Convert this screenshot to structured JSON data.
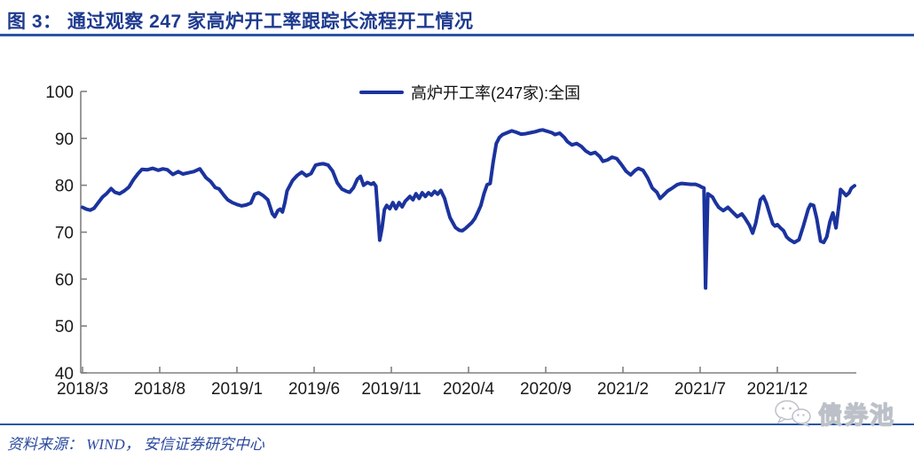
{
  "title": {
    "text": "图 3：  通过观察 247 家高炉开工率跟踪长流程开工情况"
  },
  "legend": {
    "label": "高炉开工率(247家):全国",
    "color": "#1b339e"
  },
  "source": {
    "text": "资料来源： WIND， 安信证券研究中心"
  },
  "watermark": {
    "text": "债券池",
    "icon": "wechat-chat-bubbles-icon"
  },
  "colors": {
    "line": "#1b339e",
    "title_text": "#1e3a8f",
    "rule_blue": "#2b55a6",
    "axis_gray": "#808080",
    "tick_text": "#1a1a1a"
  },
  "chart_data": {
    "type": "line",
    "title": "",
    "grid": false,
    "legend_position": "top-center",
    "x_axis": {
      "tick_labels": [
        "2018/3",
        "2018/8",
        "2019/1",
        "2019/6",
        "2019/11",
        "2020/4",
        "2020/9",
        "2021/2",
        "2021/7",
        "2021/12"
      ],
      "tick_month_offsets": [
        0,
        5,
        10,
        15,
        20,
        25,
        30,
        35,
        40,
        45
      ],
      "note": "month offset 0 = 2018/3; series extends to offset 50 (≈2022/4)"
    },
    "y_axis": {
      "ticks": [
        40,
        50,
        60,
        70,
        80,
        90,
        100
      ],
      "range": [
        40,
        100
      ]
    },
    "series": [
      {
        "name": "高炉开工率(247家):全国",
        "color": "#1b339e",
        "points_month_value": [
          [
            0,
            75.3
          ],
          [
            0.25,
            74.9
          ],
          [
            0.5,
            74.7
          ],
          [
            0.75,
            75.1
          ],
          [
            1,
            76.2
          ],
          [
            1.3,
            77.5
          ],
          [
            1.55,
            78.2
          ],
          [
            1.85,
            79.3
          ],
          [
            2.1,
            78.5
          ],
          [
            2.4,
            78.2
          ],
          [
            2.7,
            78.8
          ],
          [
            3,
            79.6
          ],
          [
            3.3,
            81.2
          ],
          [
            3.6,
            82.5
          ],
          [
            3.85,
            83.4
          ],
          [
            4.2,
            83.3
          ],
          [
            4.55,
            83.6
          ],
          [
            4.9,
            83.2
          ],
          [
            5.2,
            83.5
          ],
          [
            5.5,
            83.3
          ],
          [
            5.85,
            82.3
          ],
          [
            6.2,
            82.9
          ],
          [
            6.5,
            82.4
          ],
          [
            6.9,
            82.7
          ],
          [
            7.2,
            82.9
          ],
          [
            7.6,
            83.5
          ],
          [
            8,
            81.6
          ],
          [
            8.3,
            80.8
          ],
          [
            8.6,
            79.5
          ],
          [
            8.85,
            79.2
          ],
          [
            9.15,
            77.9
          ],
          [
            9.4,
            76.9
          ],
          [
            9.7,
            76.3
          ],
          [
            10,
            75.9
          ],
          [
            10.3,
            75.6
          ],
          [
            10.6,
            75.8
          ],
          [
            10.9,
            76.2
          ],
          [
            11.15,
            78.1
          ],
          [
            11.4,
            78.4
          ],
          [
            11.7,
            77.8
          ],
          [
            12,
            76.9
          ],
          [
            12.3,
            73.9
          ],
          [
            12.45,
            73.3
          ],
          [
            12.65,
            74.6
          ],
          [
            12.8,
            74.9
          ],
          [
            12.95,
            74.3
          ],
          [
            13.1,
            76.2
          ],
          [
            13.25,
            78.8
          ],
          [
            13.6,
            81
          ],
          [
            13.9,
            82.1
          ],
          [
            14.2,
            82.8
          ],
          [
            14.5,
            82
          ],
          [
            14.8,
            82.5
          ],
          [
            15.1,
            84.3
          ],
          [
            15.35,
            84.5
          ],
          [
            15.6,
            84.6
          ],
          [
            15.9,
            84.3
          ],
          [
            16.2,
            83
          ],
          [
            16.5,
            80.5
          ],
          [
            16.8,
            79.2
          ],
          [
            17.1,
            78.7
          ],
          [
            17.3,
            78.5
          ],
          [
            17.55,
            79.5
          ],
          [
            17.8,
            81.3
          ],
          [
            18,
            81.9
          ],
          [
            18.2,
            80
          ],
          [
            18.45,
            80.6
          ],
          [
            18.7,
            80.2
          ],
          [
            18.85,
            80.5
          ],
          [
            19,
            79.8
          ],
          [
            19.15,
            73
          ],
          [
            19.25,
            68.3
          ],
          [
            19.4,
            71
          ],
          [
            19.55,
            74.8
          ],
          [
            19.7,
            75.7
          ],
          [
            19.9,
            75
          ],
          [
            20.1,
            76.3
          ],
          [
            20.3,
            75
          ],
          [
            20.5,
            76.3
          ],
          [
            20.7,
            75.4
          ],
          [
            20.9,
            76.6
          ],
          [
            21.2,
            77.6
          ],
          [
            21.4,
            76.9
          ],
          [
            21.6,
            78.2
          ],
          [
            21.8,
            77.2
          ],
          [
            22,
            78.4
          ],
          [
            22.2,
            77.6
          ],
          [
            22.4,
            78.4
          ],
          [
            22.6,
            77.9
          ],
          [
            22.8,
            78.7
          ],
          [
            23,
            78.1
          ],
          [
            23.2,
            78.9
          ],
          [
            23.45,
            77.2
          ],
          [
            23.6,
            75.4
          ],
          [
            23.8,
            73.1
          ],
          [
            24,
            71.9
          ],
          [
            24.15,
            71
          ],
          [
            24.4,
            70.4
          ],
          [
            24.6,
            70.3
          ],
          [
            24.8,
            70.8
          ],
          [
            25,
            71.4
          ],
          [
            25.2,
            72
          ],
          [
            25.4,
            72.9
          ],
          [
            25.6,
            74.2
          ],
          [
            25.8,
            75.7
          ],
          [
            26,
            78.2
          ],
          [
            26.2,
            80.1
          ],
          [
            26.4,
            80.4
          ],
          [
            26.6,
            85
          ],
          [
            26.8,
            88.9
          ],
          [
            27,
            90.2
          ],
          [
            27.2,
            90.8
          ],
          [
            27.5,
            91.2
          ],
          [
            27.8,
            91.6
          ],
          [
            28.1,
            91.3
          ],
          [
            28.4,
            90.9
          ],
          [
            28.7,
            91
          ],
          [
            29,
            91.2
          ],
          [
            29.3,
            91.4
          ],
          [
            29.6,
            91.7
          ],
          [
            29.8,
            91.8
          ],
          [
            30.1,
            91.5
          ],
          [
            30.4,
            91.2
          ],
          [
            30.6,
            90.8
          ],
          [
            30.9,
            91.1
          ],
          [
            31.2,
            90.2
          ],
          [
            31.4,
            89.3
          ],
          [
            31.7,
            88.6
          ],
          [
            32,
            88.9
          ],
          [
            32.3,
            88.3
          ],
          [
            32.6,
            87.3
          ],
          [
            32.9,
            86.7
          ],
          [
            33.2,
            87
          ],
          [
            33.5,
            86.1
          ],
          [
            33.7,
            85.1
          ],
          [
            34,
            85.4
          ],
          [
            34.3,
            86
          ],
          [
            34.6,
            85.7
          ],
          [
            34.9,
            84.4
          ],
          [
            35.2,
            83
          ],
          [
            35.5,
            82.2
          ],
          [
            35.8,
            83.2
          ],
          [
            36,
            83.6
          ],
          [
            36.3,
            83.2
          ],
          [
            36.6,
            81.6
          ],
          [
            36.9,
            79.4
          ],
          [
            37.2,
            78.5
          ],
          [
            37.4,
            77.2
          ],
          [
            37.6,
            77.8
          ],
          [
            37.9,
            78.8
          ],
          [
            38.2,
            79.4
          ],
          [
            38.5,
            80.1
          ],
          [
            38.8,
            80.4
          ],
          [
            39.1,
            80.3
          ],
          [
            39.4,
            80.2
          ],
          [
            39.7,
            80.2
          ],
          [
            39.95,
            79.9
          ],
          [
            40.1,
            79.6
          ],
          [
            40.25,
            79.4
          ],
          [
            40.35,
            58.1
          ],
          [
            40.5,
            78.2
          ],
          [
            40.8,
            77.5
          ],
          [
            41,
            76.3
          ],
          [
            41.2,
            75.3
          ],
          [
            41.5,
            74.6
          ],
          [
            41.8,
            75.3
          ],
          [
            42.1,
            74.3
          ],
          [
            42.4,
            73.3
          ],
          [
            42.7,
            73.9
          ],
          [
            42.9,
            73
          ],
          [
            43.2,
            71.4
          ],
          [
            43.4,
            69.8
          ],
          [
            43.6,
            71.9
          ],
          [
            43.9,
            76.9
          ],
          [
            44.1,
            77.6
          ],
          [
            44.3,
            76.1
          ],
          [
            44.5,
            73.9
          ],
          [
            44.7,
            71.8
          ],
          [
            44.85,
            71.3
          ],
          [
            45,
            71.6
          ],
          [
            45.2,
            70.9
          ],
          [
            45.4,
            70.3
          ],
          [
            45.6,
            69
          ],
          [
            45.8,
            68.4
          ],
          [
            46.1,
            67.8
          ],
          [
            46.4,
            68.4
          ],
          [
            46.7,
            71.5
          ],
          [
            47,
            74.9
          ],
          [
            47.15,
            75.9
          ],
          [
            47.35,
            75.7
          ],
          [
            47.55,
            72.9
          ],
          [
            47.8,
            68.1
          ],
          [
            48,
            67.8
          ],
          [
            48.2,
            69
          ],
          [
            48.4,
            72.2
          ],
          [
            48.6,
            74.1
          ],
          [
            48.8,
            70.9
          ],
          [
            49,
            76.1
          ],
          [
            49.1,
            79.1
          ],
          [
            49.3,
            78.4
          ],
          [
            49.45,
            77.8
          ],
          [
            49.65,
            78.4
          ],
          [
            49.8,
            79.4
          ],
          [
            50,
            79.9
          ]
        ]
      }
    ]
  }
}
